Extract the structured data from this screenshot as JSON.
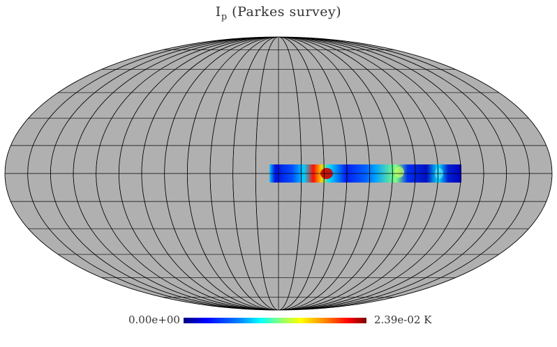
{
  "title": {
    "main": "I",
    "sub": "p",
    "suffix": " (Parkes survey)"
  },
  "colorbar": {
    "min_label": "0.00e+00",
    "max_label": "2.39e-02 K"
  },
  "map": {
    "projection": "Mollweide",
    "missing_color": "#b0b0b0",
    "grid_color": "#000000",
    "colormap": "jet"
  }
}
